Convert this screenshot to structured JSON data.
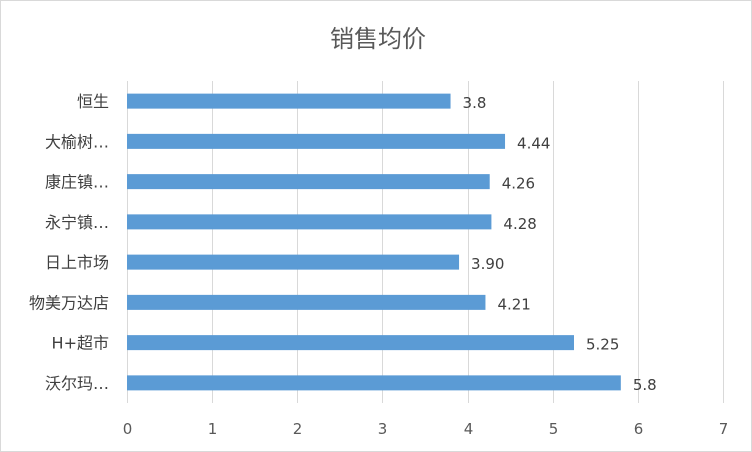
{
  "chart_data": {
    "type": "bar",
    "orientation": "horizontal",
    "title": "销售均价",
    "categories": [
      "恒生",
      "大榆树…",
      "康庄镇…",
      "永宁镇…",
      "日上市场",
      "物美万达店",
      "H+超市",
      "沃尔玛…"
    ],
    "values": [
      3.8,
      4.44,
      4.26,
      4.28,
      3.9,
      4.21,
      5.25,
      5.8
    ],
    "data_labels": [
      "3.8",
      "4.44",
      "4.26",
      "4.28",
      "3.90",
      "4.21",
      "5.25",
      "5.8"
    ],
    "xlim": [
      0,
      7
    ],
    "x_ticks": [
      "0",
      "1",
      "2",
      "3",
      "4",
      "5",
      "6",
      "7"
    ],
    "grid": true,
    "legend": "none",
    "bar_color": "#5b9bd5"
  }
}
